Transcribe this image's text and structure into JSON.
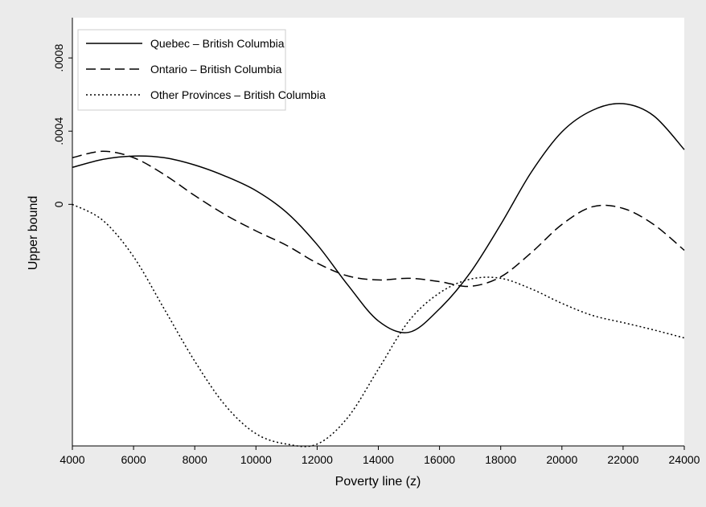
{
  "chart_data": {
    "type": "line",
    "x_label": "Poverty line (z)",
    "y_label": "Upper bound",
    "x": [
      4000,
      5000,
      6000,
      7000,
      8000,
      9000,
      10000,
      11000,
      12000,
      13000,
      14000,
      15000,
      16000,
      17000,
      18000,
      19000,
      20000,
      21000,
      22000,
      23000,
      24000
    ],
    "series": [
      {
        "name": "Quebec – British Columbia",
        "color": "#000000",
        "dash": "solid",
        "values": [
          0.000202,
          0.000246,
          0.000264,
          0.000255,
          0.000215,
          0.000154,
          7.5e-05,
          -4.4e-05,
          -0.00022,
          -0.00044,
          -0.000637,
          -0.000699,
          -0.000571,
          -0.000374,
          -0.00011,
          0.000176,
          0.000396,
          0.000514,
          0.00055,
          0.000484,
          0.000299
        ]
      },
      {
        "name": "Ontario – British Columbia",
        "color": "#000000",
        "dash": "dashed",
        "values": [
          0.000255,
          0.00029,
          0.000255,
          0.000163,
          4.8e-05,
          -5.7e-05,
          -0.000145,
          -0.000224,
          -0.000321,
          -0.000391,
          -0.000413,
          -0.000404,
          -0.000422,
          -0.000448,
          -0.000396,
          -0.000264,
          -0.00011,
          -1.3e-05,
          -2.2e-05,
          -0.00011,
          -0.000251
        ]
      },
      {
        "name": "Other Provinces – British Columbia",
        "color": "#000000",
        "dash": "dotted",
        "values": [
          0,
          -8.8e-05,
          -0.000286,
          -0.000571,
          -0.000857,
          -0.001099,
          -0.001253,
          -0.00131,
          -0.00131,
          -0.001165,
          -0.000901,
          -0.000637,
          -0.000484,
          -0.000409,
          -0.000404,
          -0.000462,
          -0.000541,
          -0.000607,
          -0.000646,
          -0.000686,
          -0.00073
        ]
      }
    ],
    "xlim": [
      4000,
      24000
    ],
    "xticks": [
      4000,
      6000,
      8000,
      10000,
      12000,
      14000,
      16000,
      18000,
      20000,
      22000,
      24000
    ],
    "ylim": [
      -0.00132,
      0.00102
    ],
    "yticks": [
      0,
      {
        "value": 0.0004,
        "label": ".0004"
      },
      {
        "value": 0.0008,
        "label": ".0008"
      }
    ],
    "legend": "top-left"
  }
}
